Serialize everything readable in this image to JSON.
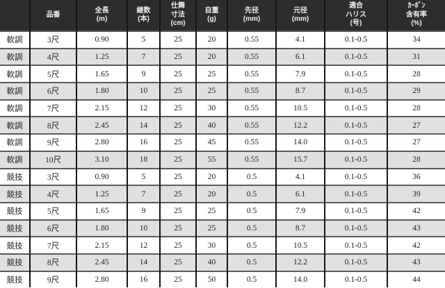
{
  "colors": {
    "header_bg": "#2d2d2d",
    "header_text": "#ededed",
    "row_bg": "#ffffff",
    "row_alt_bg": "#e0e0e0",
    "grid_v": "#141414",
    "grid_h": "#5a5a5a",
    "cell_text": "#1f1f1f"
  },
  "chart_data": {
    "type": "table",
    "columns": [
      {
        "key": "grade",
        "label": ""
      },
      {
        "key": "item",
        "label": "品番"
      },
      {
        "key": "length_m",
        "label": "全長\n(m)"
      },
      {
        "key": "sections",
        "label": "継数\n(本)"
      },
      {
        "key": "closed_cm",
        "label": "仕舞\n寸法\n(cm)"
      },
      {
        "key": "weight_g",
        "label": "自重\n(g)"
      },
      {
        "key": "tip_mm",
        "label": "先径\n(mm)"
      },
      {
        "key": "butt_mm",
        "label": "元径\n(mm)"
      },
      {
        "key": "harris_go",
        "label": "適合\nハリス\n(号)"
      },
      {
        "key": "carbon_pct",
        "label": "ｶｰﾎﾞﾝ\n含有率\n(%)"
      }
    ],
    "rows": [
      [
        "軟調",
        "3尺",
        "0.90",
        "5",
        "25",
        "20",
        "0.55",
        "4.1",
        "0.1-0.5",
        "34"
      ],
      [
        "軟調",
        "4尺",
        "1.25",
        "7",
        "25",
        "20",
        "0.55",
        "6.1",
        "0.1-0.5",
        "31"
      ],
      [
        "軟調",
        "5尺",
        "1.65",
        "9",
        "25",
        "25",
        "0.55",
        "7.9",
        "0.1-0.5",
        "28"
      ],
      [
        "軟調",
        "6尺",
        "1.80",
        "10",
        "25",
        "25",
        "0.55",
        "8.7",
        "0.1-0.5",
        "29"
      ],
      [
        "軟調",
        "7尺",
        "2.15",
        "12",
        "25",
        "30",
        "0.55",
        "10.5",
        "0.1-0.5",
        "28"
      ],
      [
        "軟調",
        "8尺",
        "2.45",
        "14",
        "25",
        "40",
        "0.55",
        "12.2",
        "0.1-0.5",
        "27"
      ],
      [
        "軟調",
        "9尺",
        "2.80",
        "16",
        "25",
        "45",
        "0.55",
        "14.0",
        "0.1-0.5",
        "27"
      ],
      [
        "軟調",
        "10尺",
        "3.10",
        "18",
        "25",
        "55",
        "0.55",
        "15.7",
        "0.1-0.5",
        "28"
      ],
      [
        "競技",
        "3尺",
        "0.90",
        "5",
        "25",
        "20",
        "0.5",
        "4.1",
        "0.1-0.5",
        "36"
      ],
      [
        "競技",
        "4尺",
        "1.25",
        "7",
        "25",
        "20",
        "0.5",
        "6.1",
        "0.1-0.5",
        "39"
      ],
      [
        "競技",
        "5尺",
        "1.65",
        "9",
        "25",
        "25",
        "0.5",
        "7.9",
        "0.1-0.5",
        "42"
      ],
      [
        "競技",
        "6尺",
        "1.80",
        "10",
        "25",
        "25",
        "0.5",
        "8.7",
        "0.1-0.5",
        "43"
      ],
      [
        "競技",
        "7尺",
        "2.15",
        "12",
        "25",
        "30",
        "0.5",
        "10.5",
        "0.1-0.5",
        "42"
      ],
      [
        "競技",
        "8尺",
        "2.45",
        "14",
        "25",
        "40",
        "0.5",
        "12.2",
        "0.1-0.5",
        "43"
      ],
      [
        "競技",
        "9尺",
        "2.80",
        "16",
        "25",
        "50",
        "0.5",
        "14.0",
        "0.1-0.5",
        "44"
      ]
    ]
  }
}
